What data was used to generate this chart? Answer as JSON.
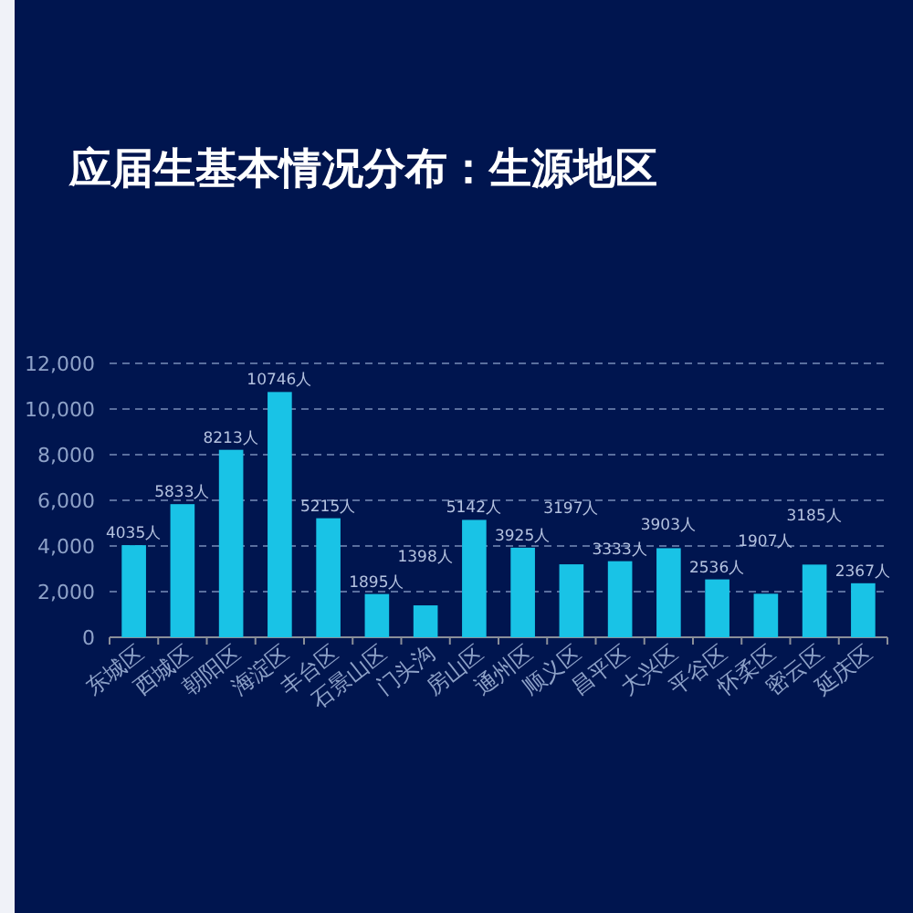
{
  "chart_data": {
    "type": "bar",
    "title": "应届生基本情况分布：生源地区",
    "categories": [
      "东城区",
      "西城区",
      "朝阳区",
      "海淀区",
      "丰台区",
      "石景山区",
      "门头沟",
      "房山区",
      "通州区",
      "顺义区",
      "昌平区",
      "大兴区",
      "平谷区",
      "怀柔区",
      "密云区",
      "延庆区"
    ],
    "values": [
      4035,
      5833,
      8213,
      10746,
      5215,
      1895,
      1398,
      5142,
      3925,
      3197,
      3333,
      3903,
      2536,
      1907,
      3185,
      2367
    ],
    "value_labels": [
      "4035人",
      "5833人",
      "8213人",
      "10746人",
      "5215人",
      "1895人",
      "1398人",
      "5142人",
      "3925人",
      "3197人",
      "3333人",
      "3903人",
      "2536人",
      "1907人",
      "3185人",
      "2367人"
    ],
    "color": "#19c3e6",
    "ylim": [
      0,
      12000
    ],
    "yticks": [
      {
        "value": 0,
        "label": "0"
      },
      {
        "value": 2000,
        "label": "2,000"
      },
      {
        "value": 4000,
        "label": "4,000"
      },
      {
        "value": 6000,
        "label": "6,000"
      },
      {
        "value": 8000,
        "label": "8,000"
      },
      {
        "value": 10000,
        "label": "10,000"
      },
      {
        "value": 12000,
        "label": "12,000"
      }
    ],
    "grid": "y"
  }
}
